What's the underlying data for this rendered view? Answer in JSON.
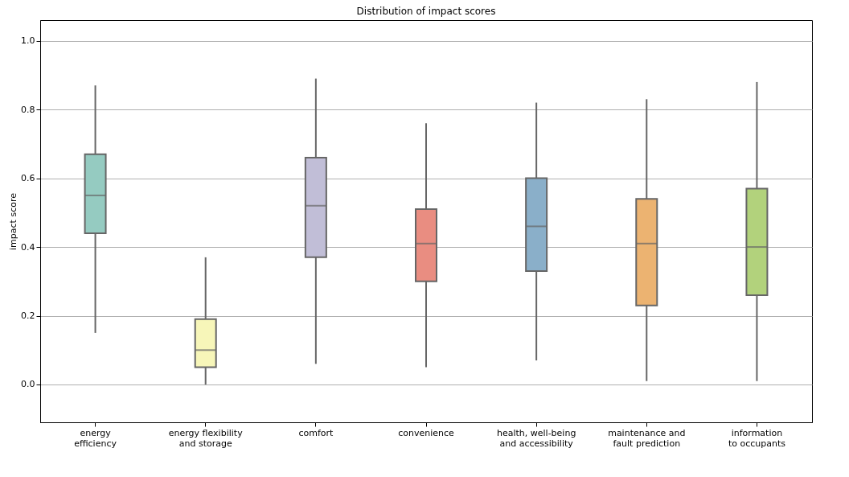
{
  "chart_data": {
    "type": "box",
    "title": "Distribution of impact scores",
    "ylabel": "impact score",
    "categories": [
      "energy efficiency",
      "energy flexibility and storage",
      "comfort",
      "convenience",
      "health, well-being and accessibility",
      "maintenance and fault prediction",
      "information to occupants"
    ],
    "colors": [
      "#95cbc1",
      "#f7f6b9",
      "#c1bed7",
      "#e98d81",
      "#8aafc9",
      "#ecb371",
      "#b2d27c"
    ],
    "boxes": [
      {
        "low": 0.15,
        "q1": 0.44,
        "median": 0.55,
        "q3": 0.67,
        "high": 0.87
      },
      {
        "low": 0.0,
        "q1": 0.05,
        "median": 0.1,
        "q3": 0.19,
        "high": 0.37
      },
      {
        "low": 0.06,
        "q1": 0.37,
        "median": 0.52,
        "q3": 0.66,
        "high": 0.89
      },
      {
        "low": 0.05,
        "q1": 0.3,
        "median": 0.41,
        "q3": 0.51,
        "high": 0.76
      },
      {
        "low": 0.07,
        "q1": 0.33,
        "median": 0.46,
        "q3": 0.6,
        "high": 0.82
      },
      {
        "low": 0.01,
        "q1": 0.23,
        "median": 0.41,
        "q3": 0.54,
        "high": 0.83
      },
      {
        "low": 0.01,
        "q1": 0.26,
        "median": 0.4,
        "q3": 0.57,
        "high": 0.88
      }
    ],
    "ylim": [
      -0.11,
      1.06
    ],
    "yticks": [
      {
        "value": 0,
        "label": "0.0"
      },
      0.2,
      0.4,
      0.6,
      0.8,
      {
        "value": 1,
        "label": "1.0"
      }
    ],
    "grid": "y"
  }
}
